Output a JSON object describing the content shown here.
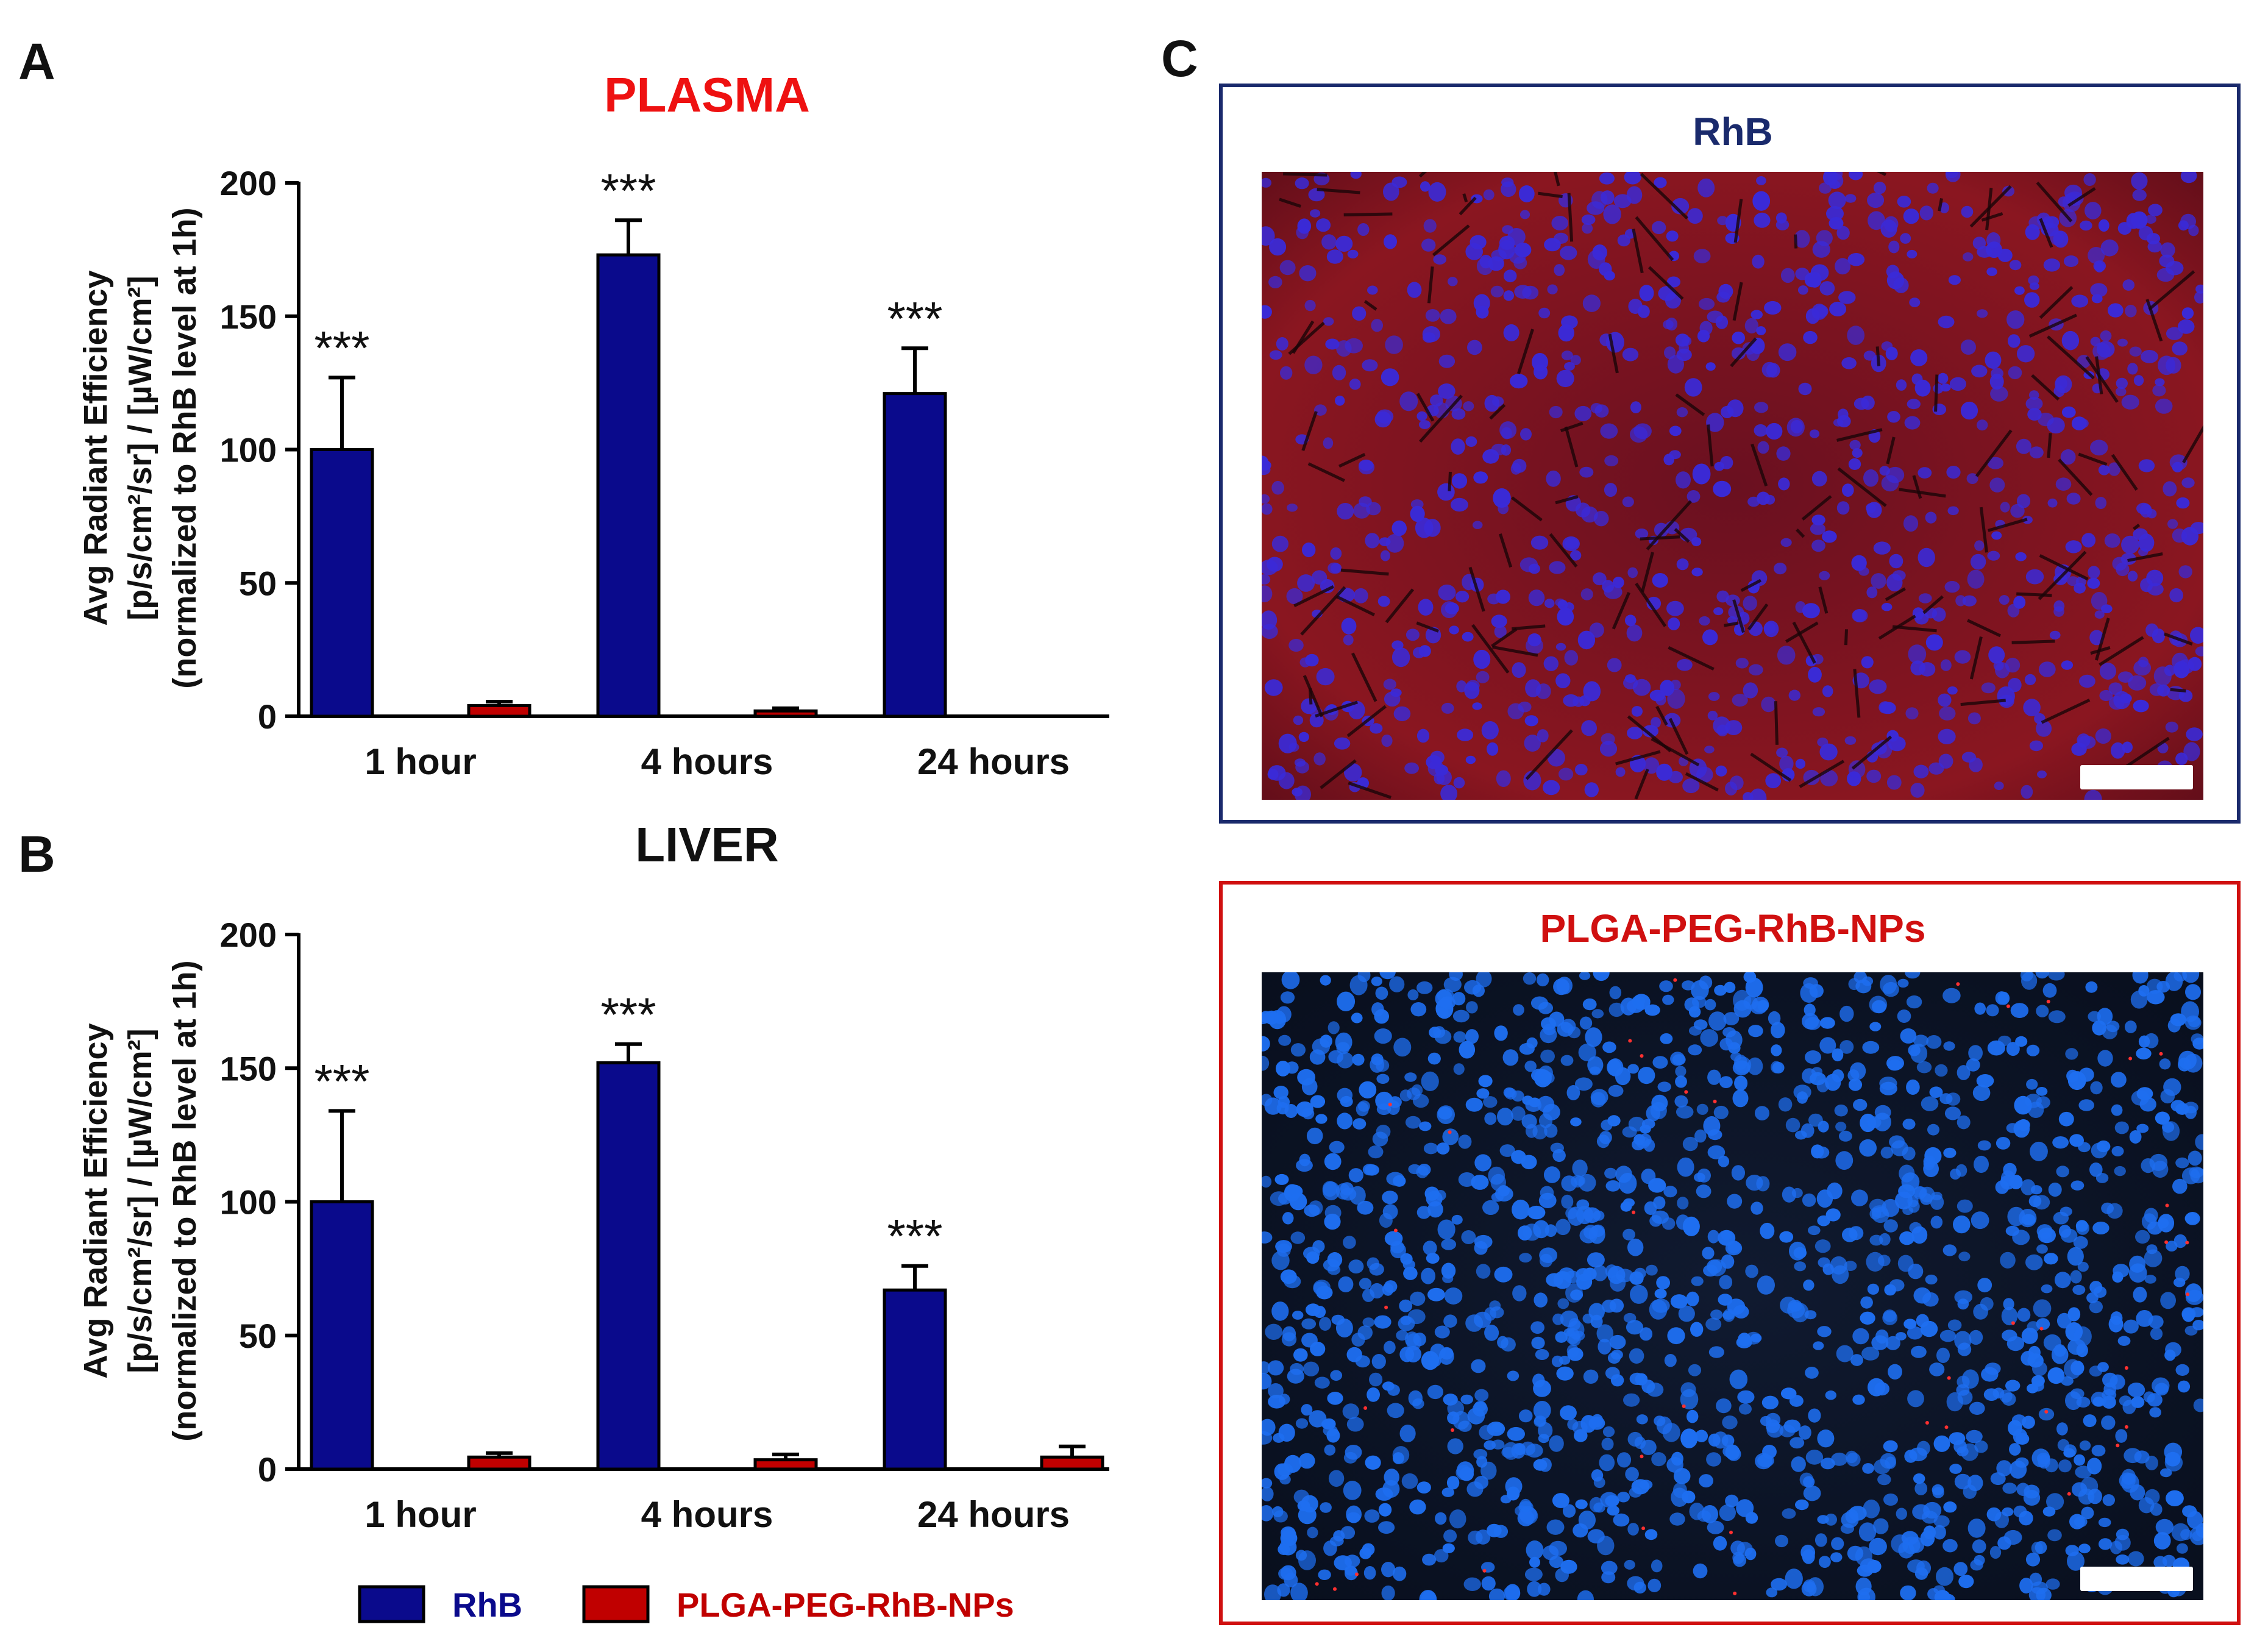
{
  "panel_labels": {
    "a": "A",
    "b": "B",
    "c": "C"
  },
  "colors": {
    "rhb": "#0a0a8c",
    "nps": "#c00000",
    "plasma_title": "#ee1111",
    "liver_title": "#111111"
  },
  "chart_data": [
    {
      "type": "bar",
      "title": "PLASMA",
      "categories": [
        "1 hour",
        "4 hours",
        "24 hours"
      ],
      "ylabel_lines": [
        "Avg Radiant Efficiency",
        "[p/s/cm²/sr] / [µW/cm²]",
        "(normalized to RhB level at 1h)"
      ],
      "ylim": [
        0,
        200
      ],
      "yticks": [
        0,
        50,
        100,
        150,
        200
      ],
      "series": [
        {
          "name": "RhB",
          "values": [
            100,
            173,
            121
          ],
          "errors": [
            27,
            13,
            17
          ]
        },
        {
          "name": "PLGA-PEG-RhB-NPs",
          "values": [
            4,
            2,
            0
          ],
          "errors": [
            1.5,
            1,
            0
          ]
        }
      ],
      "annotations": [
        "***",
        "***",
        "***"
      ]
    },
    {
      "type": "bar",
      "title": "LIVER",
      "categories": [
        "1 hour",
        "4 hours",
        "24 hours"
      ],
      "ylabel_lines": [
        "Avg Radiant Efficiency",
        "[p/s/cm²/sr] / [µW/cm²]",
        "(normalized to RhB level at 1h)"
      ],
      "ylim": [
        0,
        200
      ],
      "yticks": [
        0,
        50,
        100,
        150,
        200
      ],
      "series": [
        {
          "name": "RhB",
          "values": [
            100,
            152,
            67
          ],
          "errors": [
            34,
            7,
            9
          ]
        },
        {
          "name": "PLGA-PEG-RhB-NPs",
          "values": [
            4.5,
            3.5,
            4.5
          ],
          "errors": [
            1.5,
            2,
            4
          ]
        }
      ],
      "annotations": [
        "***",
        "***",
        "***"
      ]
    }
  ],
  "legend": [
    {
      "label": "RhB",
      "color": "#0a0a8c"
    },
    {
      "label": "PLGA-PEG-RhB-NPs",
      "color": "#c00000"
    }
  ],
  "images": [
    {
      "title": "RhB",
      "frame_color": "#1a2a6c",
      "title_color": "#1a2a6c",
      "style": "red-stained tissue with blue nuclei"
    },
    {
      "title": "PLGA-PEG-RhB-NPs",
      "frame_color": "#d01010",
      "title_color": "#d01010",
      "style": "dark tissue with blue nuclei"
    }
  ]
}
